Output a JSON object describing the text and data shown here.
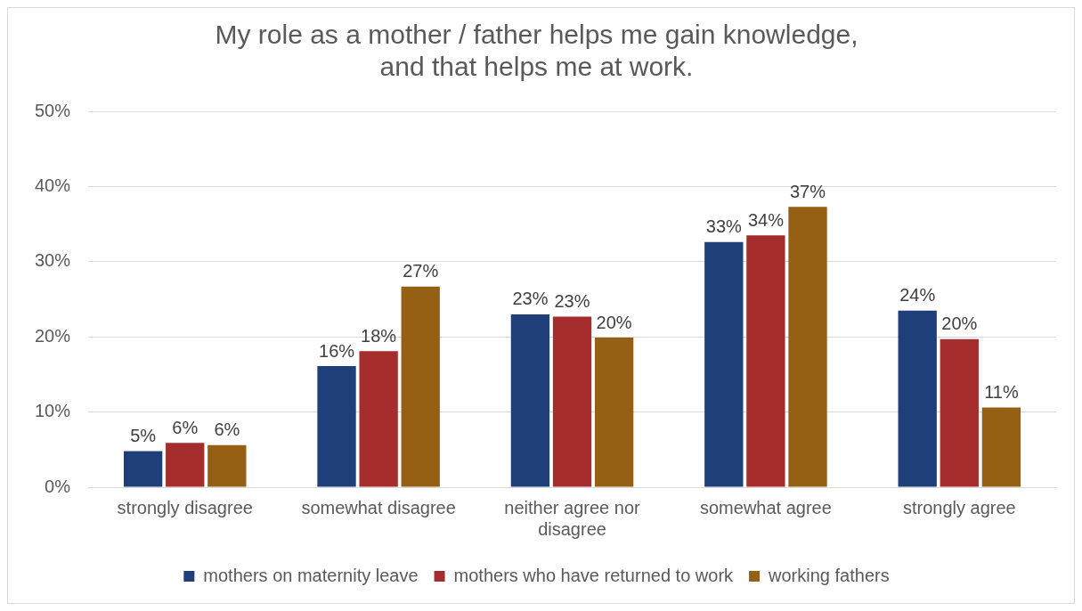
{
  "chart_data": {
    "type": "bar",
    "title": "My role as a mother / father helps me gain knowledge,\nand that helps me at work.",
    "categories": [
      "strongly disagree",
      "somewhat disagree",
      "neither agree nor disagree",
      "somewhat agree",
      "strongly agree"
    ],
    "series": [
      {
        "name": "mothers on maternity leave",
        "color": "#1f3f7a",
        "values": [
          4.8,
          16.1,
          23.0,
          32.6,
          23.5
        ],
        "value_labels": [
          "5%",
          "16%",
          "23%",
          "33%",
          "24%"
        ]
      },
      {
        "name": "mothers who have returned to work",
        "color": "#a52d2d",
        "values": [
          5.9,
          18.1,
          22.7,
          33.5,
          19.7
        ],
        "value_labels": [
          "6%",
          "18%",
          "23%",
          "34%",
          "20%"
        ]
      },
      {
        "name": "working fathers",
        "color": "#966014",
        "values": [
          5.6,
          26.7,
          19.9,
          37.3,
          10.6
        ],
        "value_labels": [
          "6%",
          "27%",
          "20%",
          "37%",
          "11%"
        ]
      }
    ],
    "ylim": [
      0,
      50
    ],
    "yticks": [
      {
        "value": 0,
        "label": "0%"
      },
      {
        "value": 10,
        "label": "10%"
      },
      {
        "value": 20,
        "label": "20%"
      },
      {
        "value": 30,
        "label": "30%"
      },
      {
        "value": 40,
        "label": "40%"
      },
      {
        "value": 50,
        "label": "50%"
      }
    ],
    "grid": "y",
    "legend": "bottom"
  }
}
